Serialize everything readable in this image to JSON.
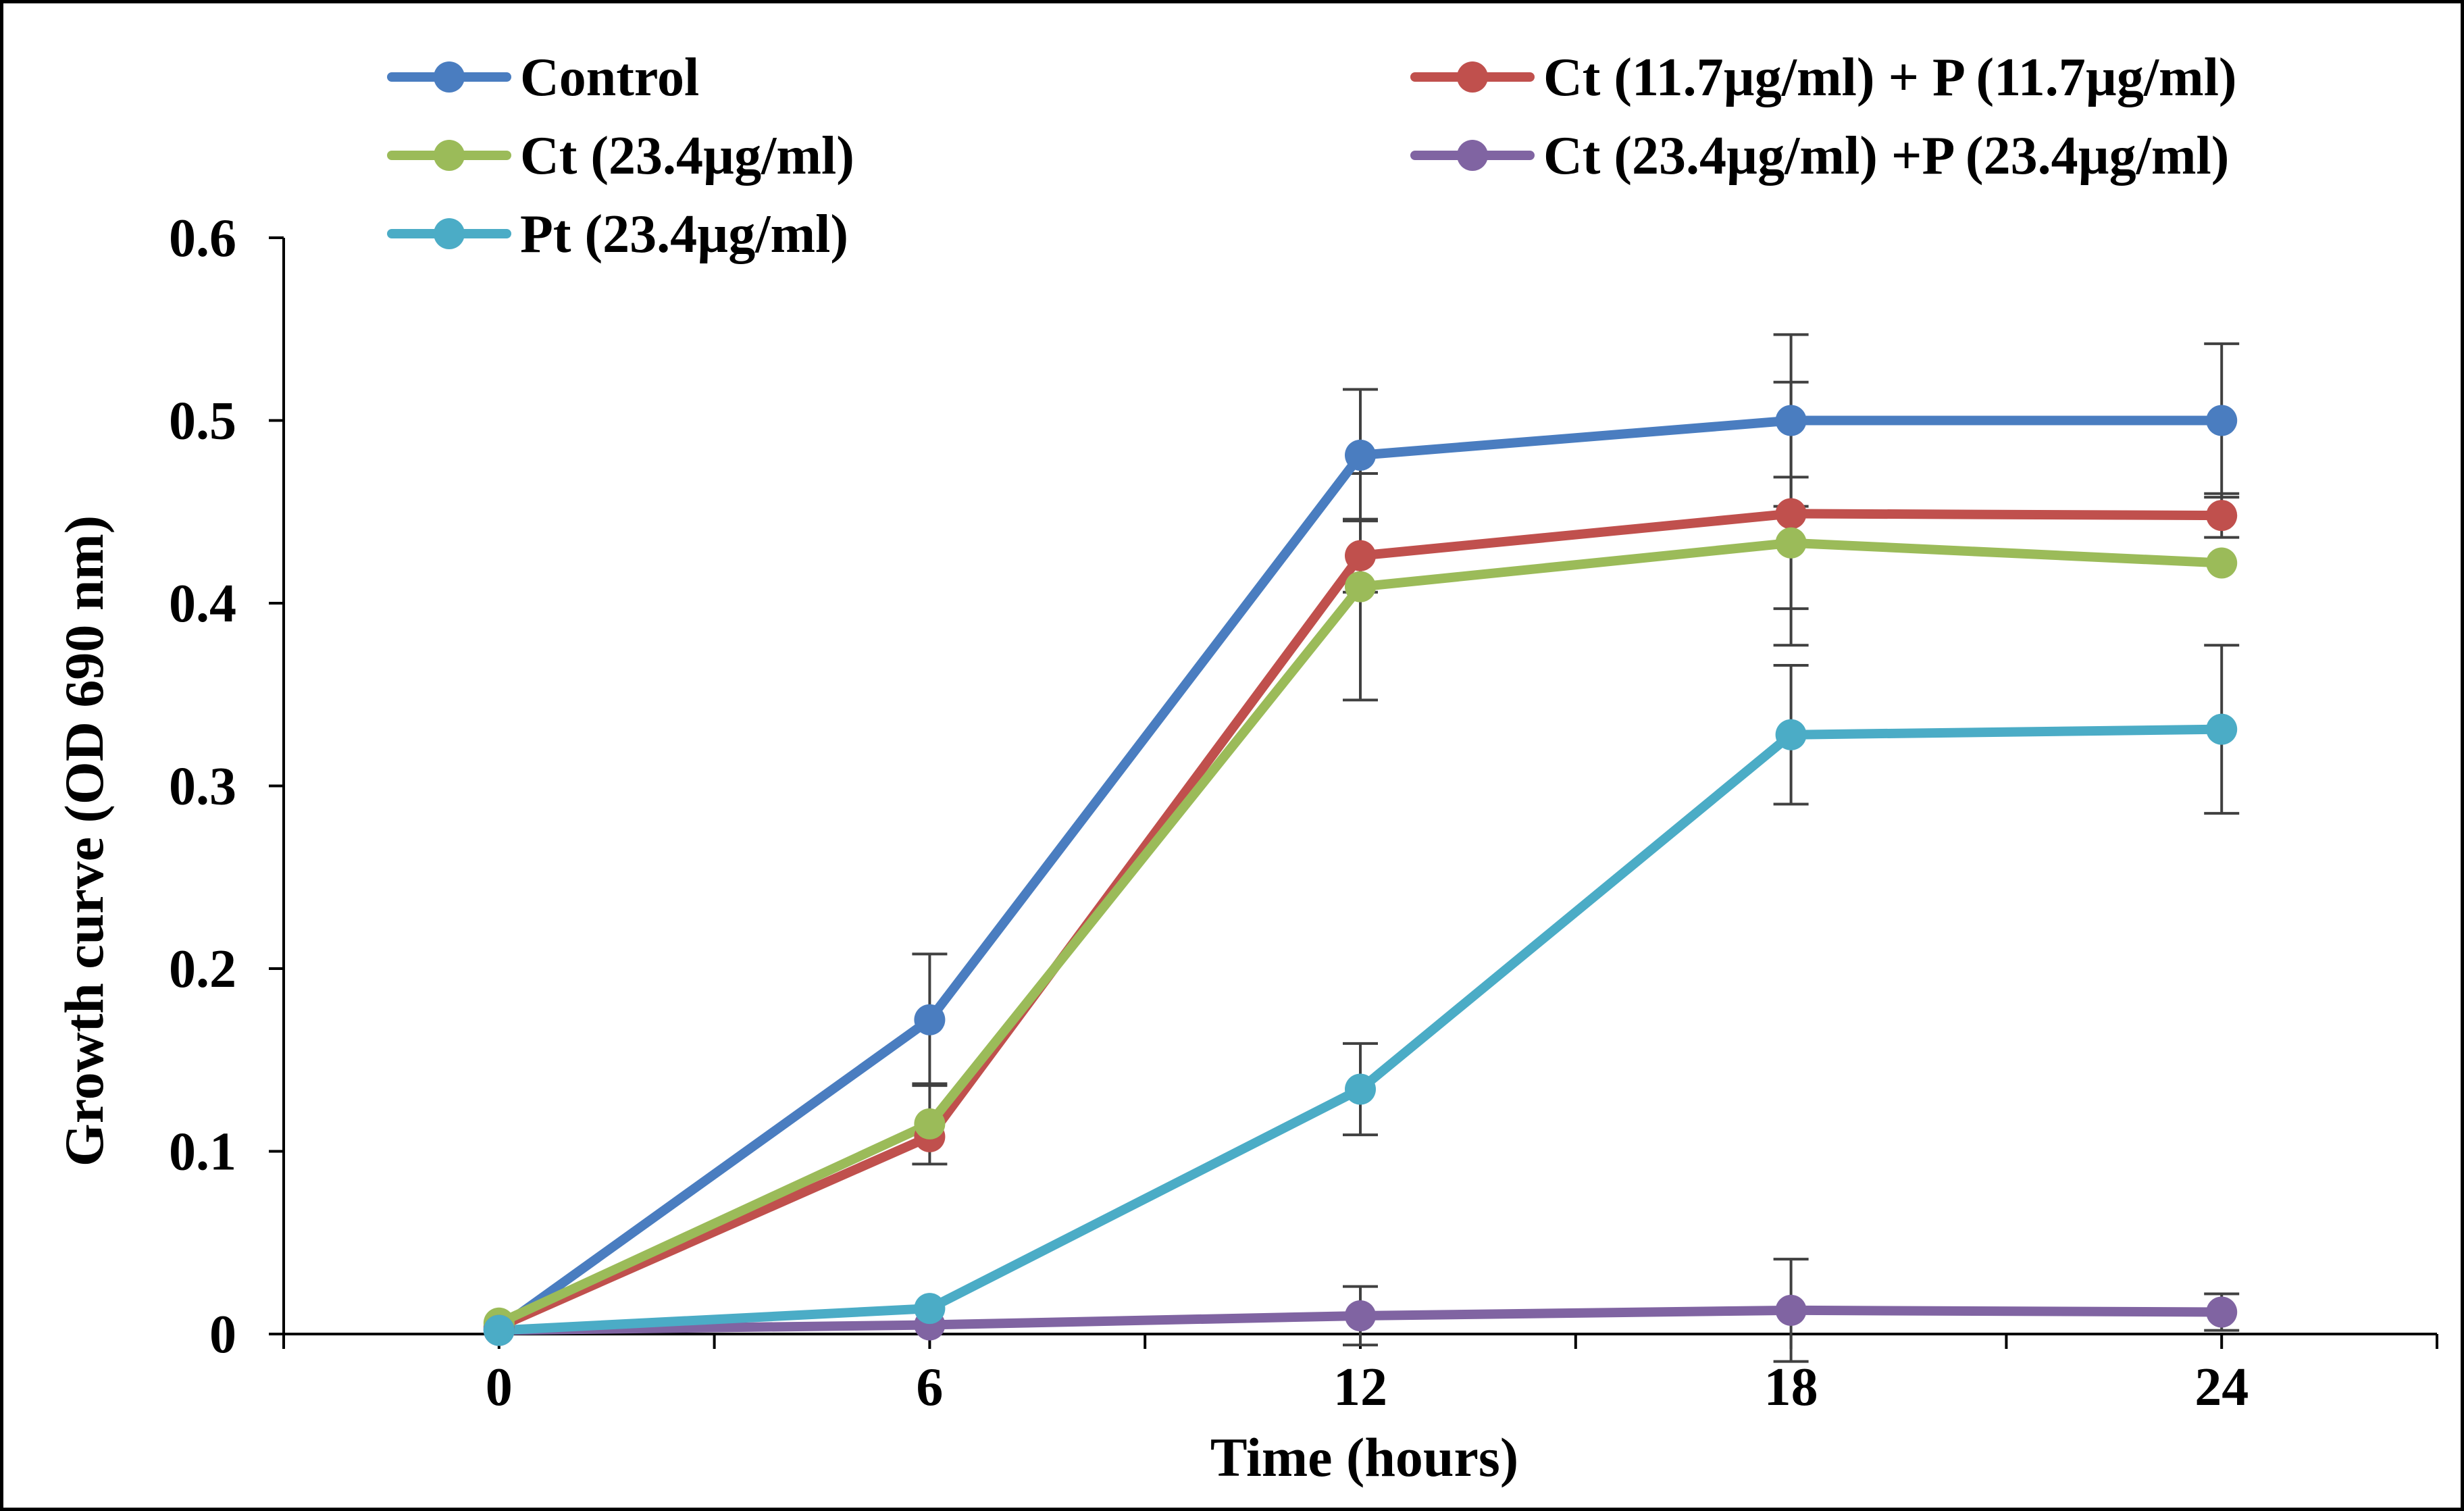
{
  "chart_data": {
    "type": "line",
    "title": "",
    "xlabel": "Time (hours)",
    "ylabel": "Growth curve (OD 690 nm)",
    "x": [
      0,
      6,
      12,
      18,
      24
    ],
    "x_tick_labels": [
      "0",
      "6",
      "12",
      "18",
      "24"
    ],
    "xlim": [
      -3,
      27
    ],
    "ylim": [
      0,
      0.6
    ],
    "y_tick_labels": [
      "0",
      "0.1",
      "0.2",
      "0.3",
      "0.4",
      "0.5",
      "0.6"
    ],
    "grid": false,
    "legend_position": "top",
    "series": [
      {
        "name": "Control",
        "color": "#4a7dc0",
        "values": [
          0.003,
          0.172,
          0.481,
          0.5,
          0.5
        ],
        "errors": [
          0.0,
          0.036,
          0.036,
          0.047,
          0.042
        ]
      },
      {
        "name": "Ct (11.7µg/ml) + P (11.7µg/ml)",
        "color": "#c0504d",
        "values": [
          0.004,
          0.108,
          0.426,
          0.449,
          0.448
        ],
        "errors": [
          0.0,
          0.0,
          0.02,
          0.072,
          0.012
        ]
      },
      {
        "name": "Ct (23.4µg/ml)",
        "color": "#9bbb59",
        "values": [
          0.006,
          0.115,
          0.409,
          0.433,
          0.422
        ],
        "errors": [
          0.0,
          0.022,
          0.062,
          0.036,
          0.0
        ]
      },
      {
        "name": "Ct (23.4µg/ml) +P (23.4µg/ml)",
        "color": "#8064a2",
        "values": [
          0.002,
          0.005,
          0.01,
          0.013,
          0.012
        ],
        "errors": [
          0.0,
          0.0,
          0.016,
          0.028,
          0.01
        ]
      },
      {
        "name": "Pt (23.4µg/ml)",
        "color": "#4bacc6",
        "values": [
          0.002,
          0.014,
          0.134,
          0.328,
          0.331
        ],
        "errors": [
          0.0,
          0.0,
          0.025,
          0.038,
          0.046
        ]
      }
    ]
  }
}
